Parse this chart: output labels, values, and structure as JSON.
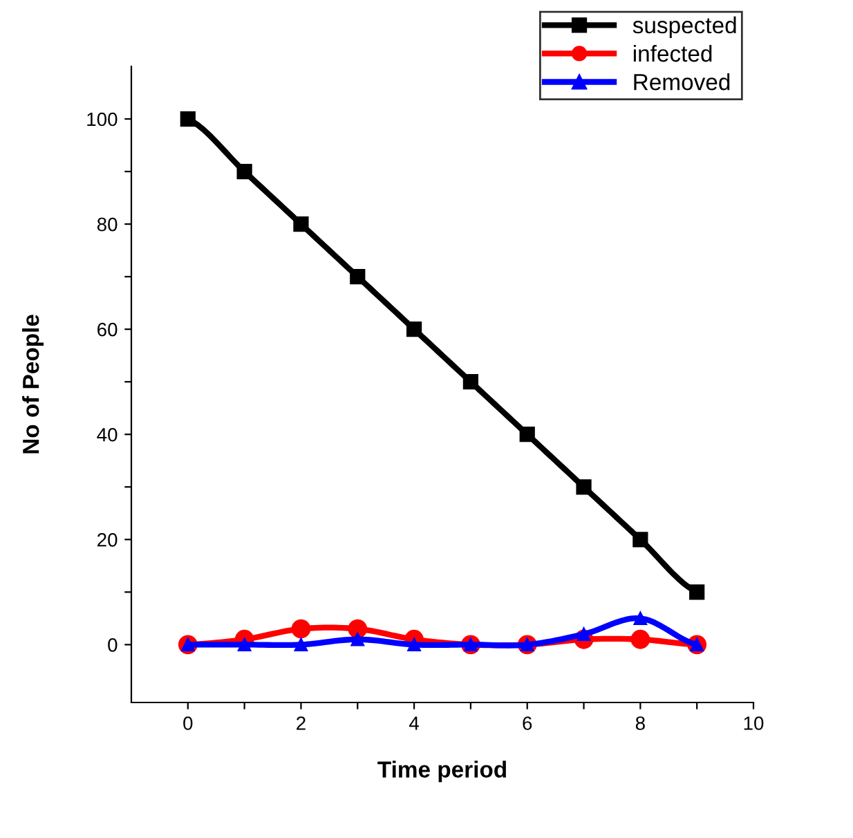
{
  "chart_data": {
    "type": "line",
    "xlabel": "Time period",
    "ylabel": "No of People",
    "x": [
      0,
      1,
      2,
      3,
      4,
      5,
      6,
      7,
      8,
      9
    ],
    "series": [
      {
        "name": "suspected",
        "color": "#000000",
        "marker": "square",
        "values": [
          100,
          90,
          80,
          70,
          60,
          50,
          40,
          30,
          20,
          10
        ]
      },
      {
        "name": "infected",
        "color": "#ff0000",
        "marker": "circle",
        "values": [
          0,
          1,
          3,
          3,
          1,
          0,
          0,
          1,
          1,
          0
        ]
      },
      {
        "name": "Removed",
        "color": "#0000ff",
        "marker": "triangle",
        "values": [
          0,
          0,
          0,
          1,
          0,
          0,
          0,
          2,
          5,
          0
        ]
      }
    ],
    "xlim": [
      -1,
      10
    ],
    "ylim": [
      -11,
      110
    ],
    "xticks": [
      0,
      {
        "value": 1,
        "label": null
      },
      2,
      {
        "value": 3,
        "label": null
      },
      4,
      {
        "value": 5,
        "label": null
      },
      6,
      {
        "value": 7,
        "label": null
      },
      8,
      {
        "value": 9,
        "label": null
      },
      10
    ],
    "yticks": [
      0,
      {
        "value": 10,
        "label": null
      },
      20,
      {
        "value": 30,
        "label": null
      },
      40,
      {
        "value": 50,
        "label": null
      },
      60,
      {
        "value": 70,
        "label": null
      },
      80,
      {
        "value": 90,
        "label": null
      },
      100
    ],
    "grid": false,
    "legend": "top right",
    "line_style": "solid"
  }
}
